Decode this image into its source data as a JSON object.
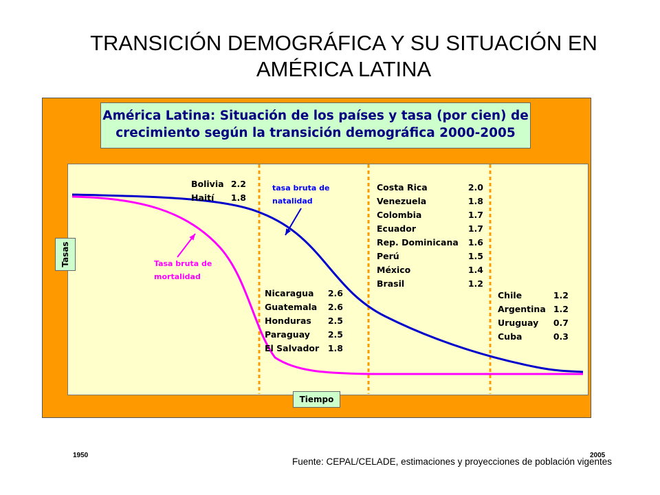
{
  "slide_title": "TRANSICIÓN DEMOGRÁFICA Y SU SITUACIÓN EN AMÉRICA LATINA",
  "chart_data": {
    "type": "line",
    "title": "América Latina: Situación de los países y tasa (por cien) de crecimiento según la transición demográfica 2000-2005",
    "xlabel": "Tiempo",
    "ylabel": "Tasas",
    "x_range": [
      "1950",
      "2005"
    ],
    "grid": false,
    "series": [
      {
        "name": "tasa bruta de natalidad",
        "color": "#0000cc",
        "label": "tasa bruta de natalidad"
      },
      {
        "name": "Tasa bruta de mortalidad",
        "color": "#ff00ff",
        "label": "Tasa bruta de mortalidad"
      }
    ],
    "stage_dividers_color": "#ff9900",
    "stages": [
      {
        "countries": [
          {
            "name": "Bolivia",
            "rate": "2.2"
          },
          {
            "name": "Haití",
            "rate": "1.8"
          }
        ]
      },
      {
        "countries": [
          {
            "name": "Nicaragua",
            "rate": "2.6"
          },
          {
            "name": "Guatemala",
            "rate": "2.6"
          },
          {
            "name": "Honduras",
            "rate": "2.5"
          },
          {
            "name": "Paraguay",
            "rate": "2.5"
          },
          {
            "name": "El Salvador",
            "rate": "1.8"
          }
        ]
      },
      {
        "countries": [
          {
            "name": "Costa Rica",
            "rate": "2.0"
          },
          {
            "name": "Venezuela",
            "rate": "1.8"
          },
          {
            "name": "Colombia",
            "rate": "1.7"
          },
          {
            "name": "Ecuador",
            "rate": "1.7"
          },
          {
            "name": "Rep. Dominicana",
            "rate": "1.6"
          },
          {
            "name": "Perú",
            "rate": "1.5"
          },
          {
            "name": "México",
            "rate": "1.4"
          },
          {
            "name": "Brasil",
            "rate": "1.2"
          }
        ]
      },
      {
        "countries": [
          {
            "name": "Chile",
            "rate": "1.2"
          },
          {
            "name": "Argentina",
            "rate": "1.2"
          },
          {
            "name": "Uruguay",
            "rate": "0.7"
          },
          {
            "name": "Cuba",
            "rate": "0.3"
          }
        ]
      }
    ]
  },
  "colors": {
    "frame": "#ff9900",
    "plot_background": "#ffffcc",
    "label_box": "#ccffcc",
    "title_text": "#000080"
  },
  "source": "Fuente: CEPAL/CELADE, estimaciones y proyecciones de población vigentes"
}
